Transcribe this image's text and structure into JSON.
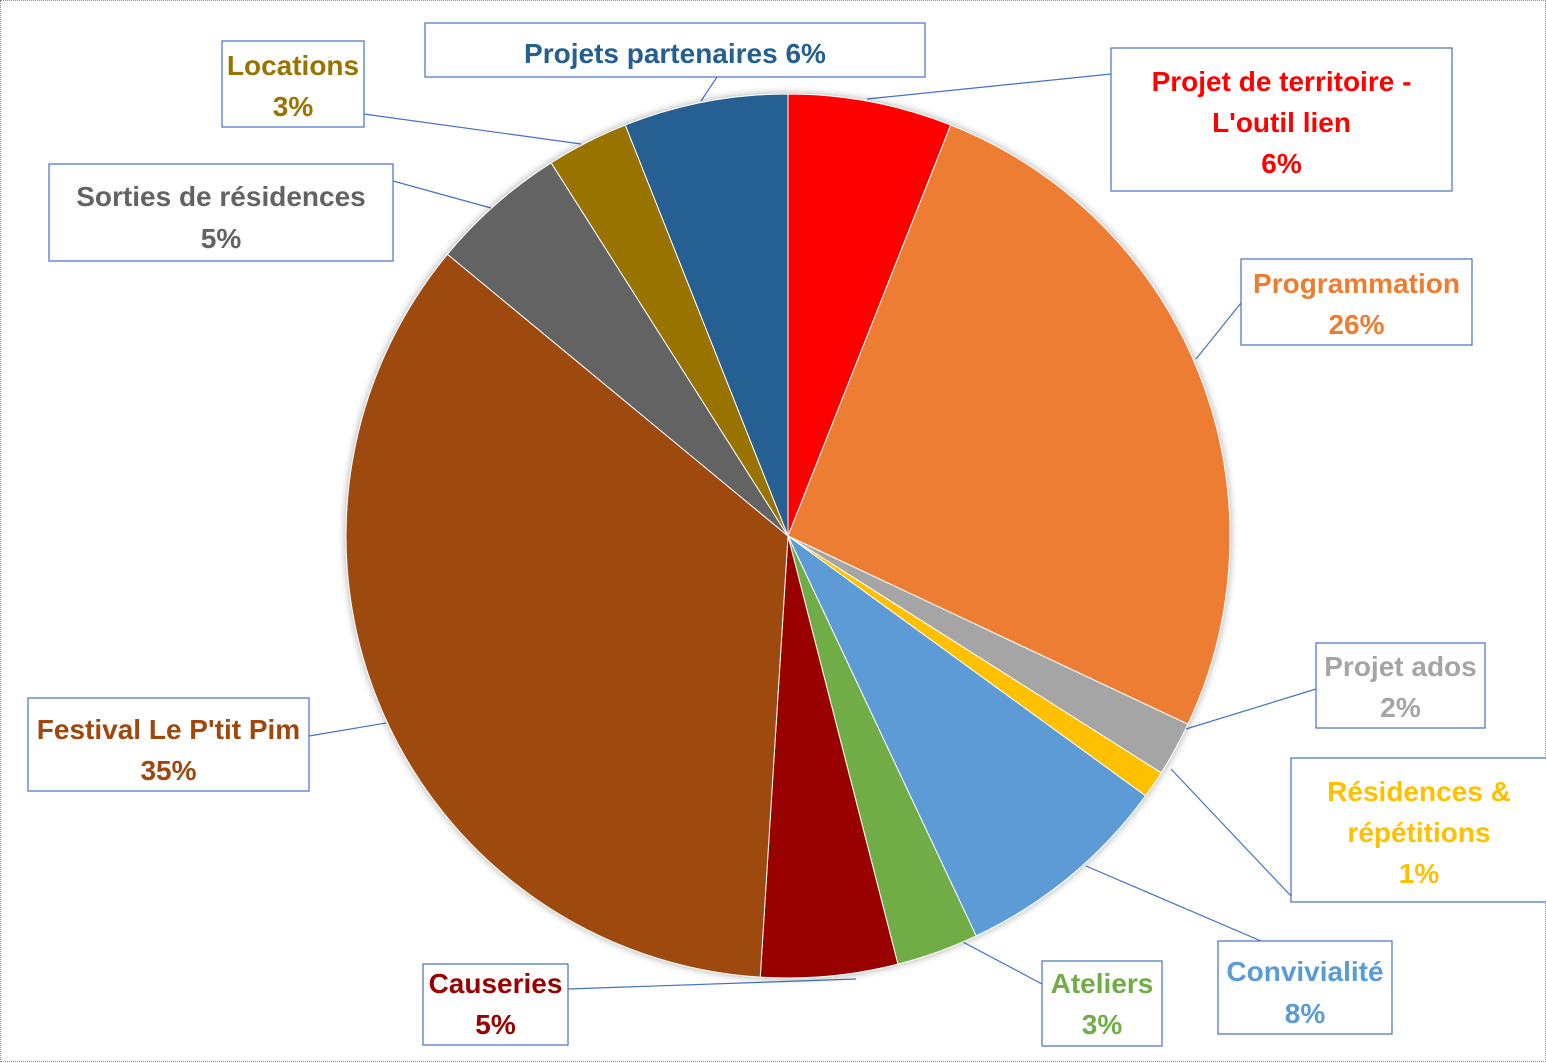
{
  "chart_data": {
    "type": "pie",
    "title": "",
    "legend": "none",
    "slices": [
      {
        "label": "Projet de territoire - L'outil lien",
        "lines": [
          "Projet de territoire -",
          "L'outil lien",
          "6%"
        ],
        "value": 6,
        "color": "#ff0000"
      },
      {
        "label": "Programmation",
        "lines": [
          "Programmation",
          "26%"
        ],
        "value": 26,
        "color": "#ed7d31"
      },
      {
        "label": "Projet ados",
        "lines": [
          "Projet ados",
          "2%"
        ],
        "value": 2,
        "color": "#a5a5a5"
      },
      {
        "label": "Résidences & répétitions",
        "lines": [
          "Résidences &",
          "répétitions",
          "1%"
        ],
        "value": 1,
        "color": "#ffc000"
      },
      {
        "label": "Convivialité",
        "lines": [
          "Convivialité",
          "8%"
        ],
        "value": 8,
        "color": "#5b9bd5"
      },
      {
        "label": "Ateliers",
        "lines": [
          "Ateliers",
          "3%"
        ],
        "value": 3,
        "color": "#70ad47"
      },
      {
        "label": "Causeries",
        "lines": [
          "Causeries",
          "5%"
        ],
        "value": 5,
        "color": "#990000"
      },
      {
        "label": "Festival Le P'tit Pim",
        "lines": [
          "Festival Le P'tit Pim",
          "35%"
        ],
        "value": 35,
        "color": "#9e480e"
      },
      {
        "label": "Sorties de résidences",
        "lines": [
          "Sorties de résidences",
          "5%"
        ],
        "value": 5,
        "color": "#636363"
      },
      {
        "label": "Locations",
        "lines": [
          "Locations",
          "3%"
        ],
        "value": 3,
        "color": "#997300"
      },
      {
        "label": "Projets partenaires",
        "lines": [
          "Projets partenaires 6%"
        ],
        "value": 6,
        "color": "#255e91"
      }
    ],
    "label_colors": [
      "#ff0000",
      "#ed7d31",
      "#a5a5a5",
      "#ffc000",
      "#5b9bd5",
      "#70ad47",
      "#990000",
      "#9e480e",
      "#636363",
      "#997300",
      "#255e91"
    ]
  }
}
